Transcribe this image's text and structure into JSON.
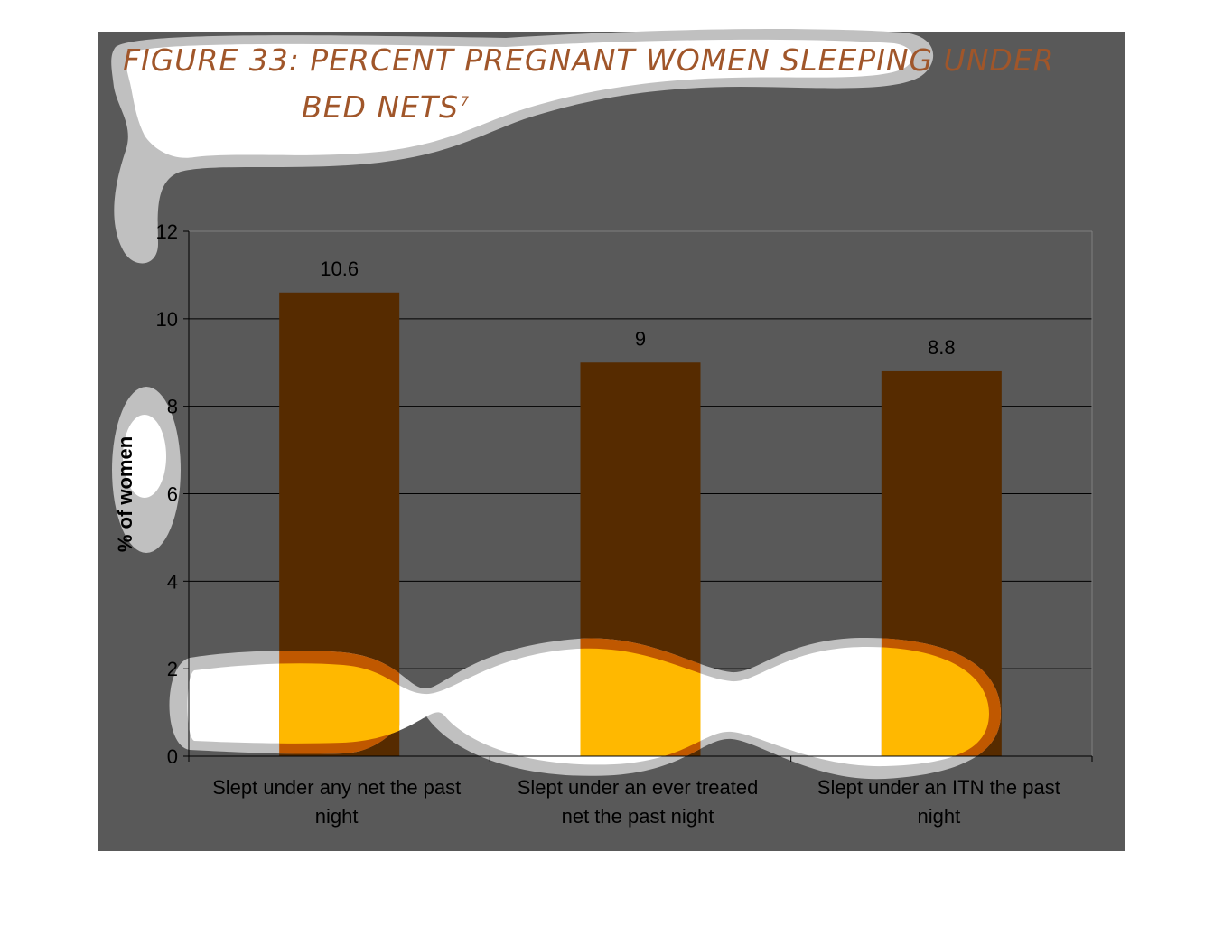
{
  "colors": {
    "background_panel": "#595959",
    "bar": "#562b00",
    "bar_highlight": "#ffb800",
    "bar_rim": "#c05800",
    "blob_fill": "#ffffff",
    "blob_rim": "#c0c0c0",
    "title": "#a0562a"
  },
  "title": {
    "line1": "FIGURE 33: PERCENT PREGNANT WOMEN SLEEPING UNDER",
    "line2": "BED NETS",
    "superscript": "7"
  },
  "chart_data": {
    "type": "bar",
    "categories": [
      [
        "Slept under any net the past",
        "night"
      ],
      [
        "Slept under an ever treated",
        "net the past night"
      ],
      [
        "Slept under an ITN the past",
        "night"
      ]
    ],
    "values": [
      10.6,
      9,
      8.8
    ],
    "value_labels": [
      "10.6",
      "9",
      "8.8"
    ],
    "ylabel": "% of women",
    "xlabel": "",
    "ylim": [
      0,
      12
    ],
    "yticks": [
      0,
      2,
      4,
      6,
      8,
      10,
      12
    ],
    "grid": true,
    "legend": "none"
  }
}
